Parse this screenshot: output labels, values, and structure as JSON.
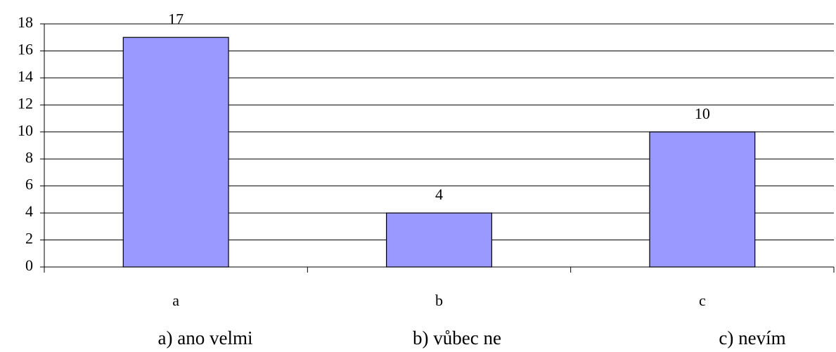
{
  "chart_data": {
    "type": "bar",
    "categories": [
      "a",
      "b",
      "c"
    ],
    "values": [
      17,
      4,
      10
    ],
    "color": "#9999ff",
    "ylim": [
      0,
      18
    ],
    "yticks": [
      0,
      2,
      4,
      6,
      8,
      10,
      12,
      14,
      16,
      18
    ],
    "grid": true,
    "notes": [
      "a) ano velmi",
      "b) vůbec ne",
      "c) nevím"
    ]
  }
}
